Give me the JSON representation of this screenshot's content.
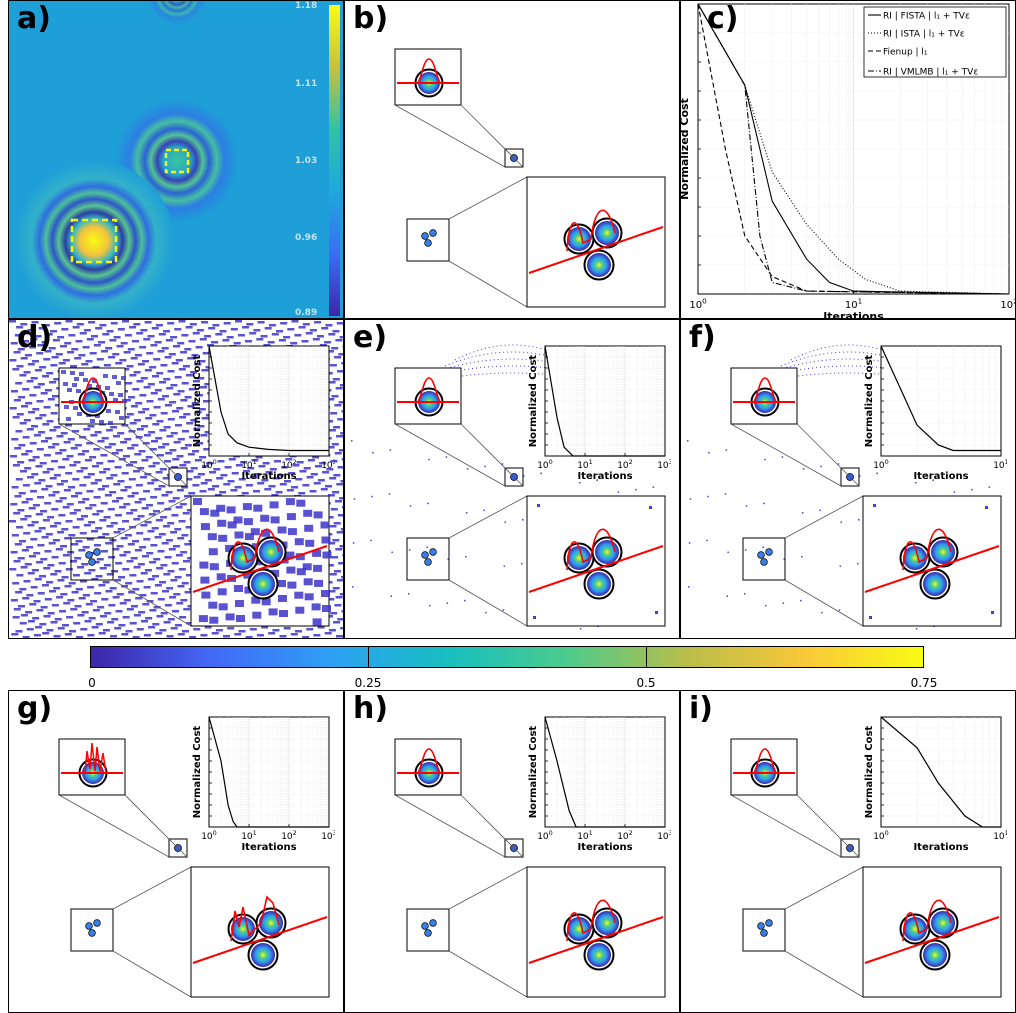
{
  "panels": {
    "a": {
      "label": "a)",
      "colorbar_ticks": [
        "1.18",
        "1.11",
        "1.03",
        "0.96",
        "0.89"
      ]
    },
    "b": {
      "label": "b)"
    },
    "c": {
      "label": "c)"
    },
    "d": {
      "label": "d)"
    },
    "e": {
      "label": "e)"
    },
    "f": {
      "label": "f)"
    },
    "g": {
      "label": "g)"
    },
    "h": {
      "label": "h)"
    },
    "i": {
      "label": "i)"
    }
  },
  "colors": {
    "profile": "#ff0000",
    "outline": "#000000",
    "box_dashed": "#f5f50a",
    "noise": "#3d34c9"
  },
  "colorbar": {
    "ticks": [
      "0",
      "0.25",
      "0.5",
      "0.75"
    ]
  },
  "chart_data": [
    {
      "panel": "c",
      "type": "line",
      "xlabel": "Iterations",
      "ylabel": "Normalized Cost",
      "xscale": "log",
      "xlim": [
        1,
        100
      ],
      "ylim": [
        0,
        1
      ],
      "xticks": [
        "10^0",
        "10^1",
        "10^2"
      ],
      "grid": true,
      "legend_position": "top-right",
      "series": [
        {
          "name": "RI | FISTA | l₁ + TVε",
          "style": "solid",
          "x": [
            1,
            2,
            3,
            5,
            7,
            10,
            100
          ],
          "y": [
            1.0,
            0.72,
            0.32,
            0.12,
            0.04,
            0.01,
            0.0
          ]
        },
        {
          "name": "RI | ISTA | l₁ + TVε",
          "style": "dotted",
          "x": [
            1,
            2,
            3,
            5,
            8,
            12,
            20,
            100
          ],
          "y": [
            1.0,
            0.72,
            0.42,
            0.24,
            0.12,
            0.05,
            0.01,
            0.0
          ]
        },
        {
          "name": "Fienup | l₁",
          "style": "dashed",
          "x": [
            1,
            1.5,
            2,
            3,
            5,
            100
          ],
          "y": [
            1.0,
            0.5,
            0.2,
            0.06,
            0.01,
            0.0
          ]
        },
        {
          "name": "RI | VMLMB | l₁ + TVε",
          "style": "dashdot",
          "x": [
            1,
            2,
            2.5,
            3,
            5,
            100
          ],
          "y": [
            1.0,
            0.72,
            0.2,
            0.04,
            0.01,
            0.0
          ]
        }
      ]
    },
    {
      "panel": "d",
      "type": "line",
      "xlabel": "Iterations",
      "ylabel": "Normalized Cost",
      "xscale": "log",
      "xlim": [
        1,
        1000
      ],
      "xticks": [
        "10^0",
        "10^1",
        "10^2",
        "10^3"
      ],
      "x": [
        1,
        2,
        3,
        5,
        10,
        30,
        100,
        1000
      ],
      "y": [
        1.0,
        0.4,
        0.2,
        0.12,
        0.08,
        0.06,
        0.05,
        0.05
      ]
    },
    {
      "panel": "e",
      "type": "line",
      "xlabel": "Iterations",
      "ylabel": "Normalized Cost",
      "xscale": "log",
      "xlim": [
        1,
        1000
      ],
      "xticks": [
        "10^0",
        "10^1",
        "10^2",
        "10^3"
      ],
      "x": [
        1,
        2,
        3,
        5,
        1000
      ],
      "y": [
        1.0,
        0.35,
        0.08,
        0.0,
        0.0
      ]
    },
    {
      "panel": "f",
      "type": "line",
      "xlabel": "Iterations",
      "ylabel": "Normalized Cost",
      "xscale": "log",
      "xlim": [
        1,
        10
      ],
      "xticks": [
        "10^0",
        "10^1"
      ],
      "x": [
        1,
        2,
        3,
        4,
        10
      ],
      "y": [
        1.0,
        0.28,
        0.1,
        0.05,
        0.05
      ]
    },
    {
      "panel": "g",
      "type": "line",
      "xlabel": "Iterations",
      "ylabel": "Normalized Cost",
      "xscale": "log",
      "xlim": [
        1,
        1000
      ],
      "xticks": [
        "10^0",
        "10^1",
        "10^2",
        "10^3"
      ],
      "x": [
        1,
        2,
        3,
        4,
        5,
        1000
      ],
      "y": [
        1.0,
        0.6,
        0.2,
        0.05,
        0.0,
        0.0
      ]
    },
    {
      "panel": "h",
      "type": "line",
      "xlabel": "Iterations",
      "ylabel": "Normalized Cost",
      "xscale": "log",
      "xlim": [
        1,
        1000
      ],
      "xticks": [
        "10^0",
        "10^1",
        "10^2",
        "10^3"
      ],
      "x": [
        1,
        2,
        4,
        6,
        1000
      ],
      "y": [
        1.0,
        0.6,
        0.15,
        0.0,
        0.0
      ]
    },
    {
      "panel": "i",
      "type": "line",
      "xlabel": "Iterations",
      "ylabel": "Normalized Cost",
      "xscale": "log",
      "xlim": [
        1,
        10
      ],
      "xticks": [
        "10^0",
        "10^1"
      ],
      "x": [
        1,
        2,
        3,
        5,
        7,
        10
      ],
      "y": [
        1.0,
        0.72,
        0.4,
        0.1,
        0.0,
        0.0
      ]
    }
  ]
}
